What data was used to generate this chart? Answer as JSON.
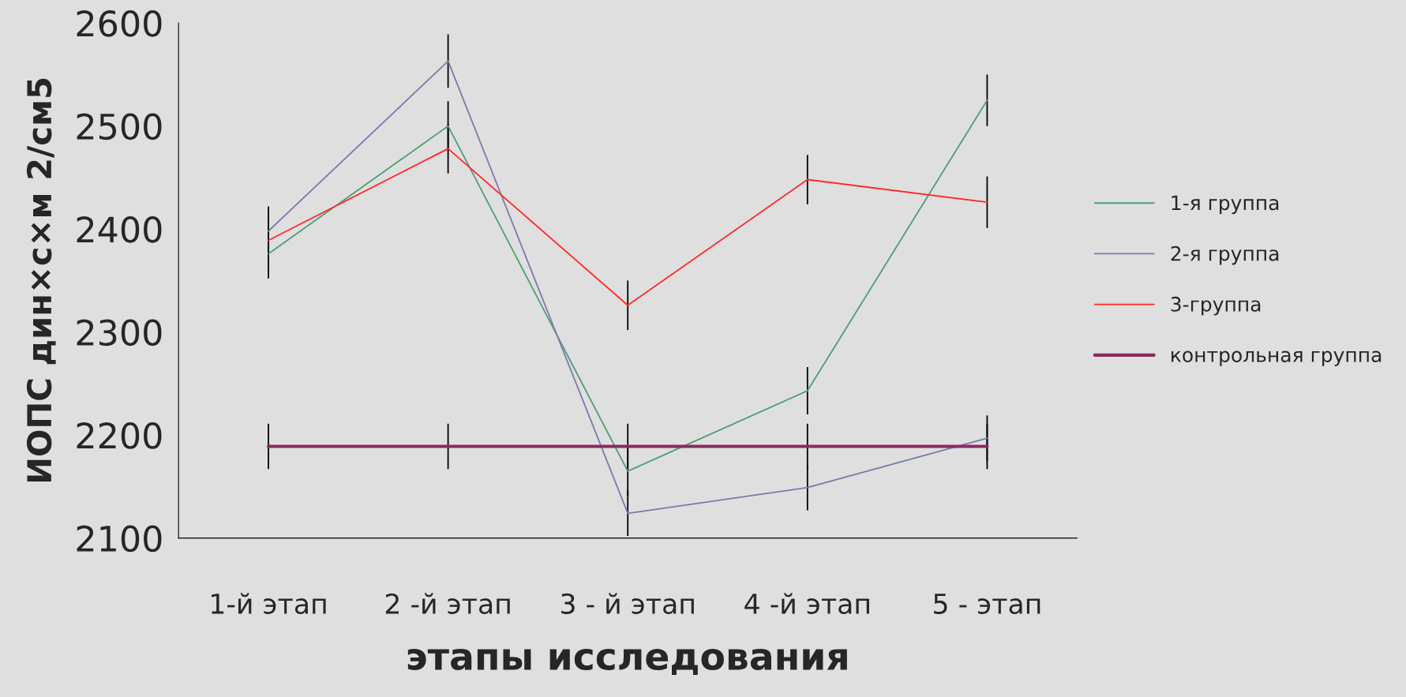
{
  "chart_data": {
    "type": "line",
    "xlabel": "этапы исследования",
    "ylabel": "ИОПС дин×с×м 2/см5",
    "categories": [
      "1-й этап",
      "2 -й этап",
      "3 - й этап",
      "4 -й этап",
      "5 - этап"
    ],
    "series": [
      {
        "name": "1-я группа",
        "color": "#4f9e76",
        "values": [
          2376,
          2500,
          2165,
          2243,
          2525
        ],
        "errors": [
          24,
          24,
          24,
          23,
          25
        ]
      },
      {
        "name": "2-я группа",
        "color": "#7b7aab",
        "values": [
          2398,
          2563,
          2124,
          2149,
          2197
        ],
        "errors": [
          24,
          26,
          22,
          22,
          22
        ]
      },
      {
        "name": "3-группа",
        "color": "#ff2a2a",
        "values": [
          2389,
          2478,
          2326,
          2448,
          2426
        ],
        "errors": [
          24,
          24,
          24,
          24,
          25
        ]
      },
      {
        "name": "контрольная группа",
        "color": "#8b2a5e",
        "values": [
          2189,
          2189,
          2189,
          2189,
          2189
        ],
        "errors": [
          22,
          22,
          22,
          22,
          22
        ]
      }
    ],
    "ylim": [
      2100,
      2600
    ],
    "yticks": [
      2100,
      2200,
      2300,
      2400,
      2500,
      2600
    ],
    "grid": false,
    "legend": "right",
    "marker": "none",
    "line_style": "solid"
  }
}
